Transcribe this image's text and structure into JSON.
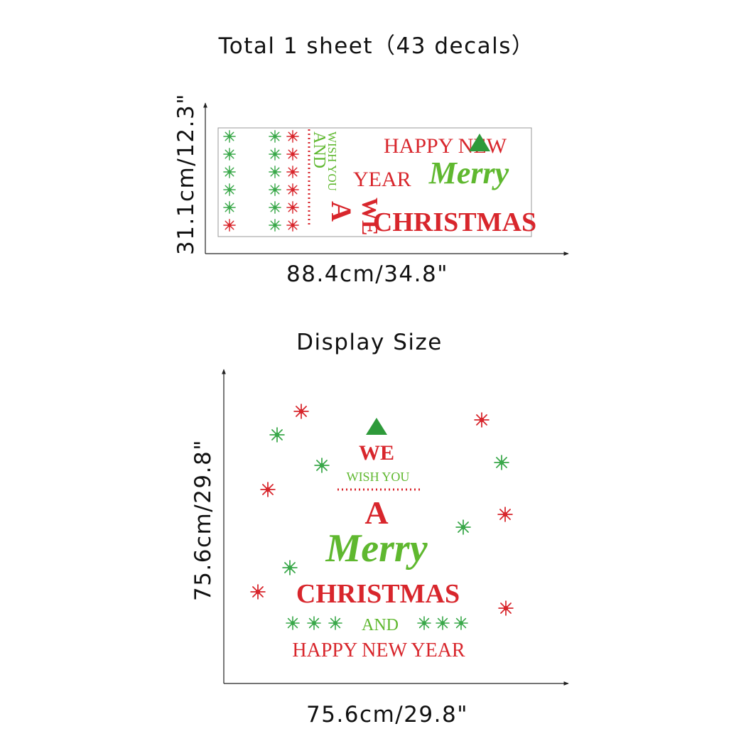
{
  "header": {
    "title": "Total 1 sheet（43 decals）"
  },
  "sheet": {
    "height_label": "31.1cm/12.3\"",
    "width_label": "88.4cm/34.8\"",
    "decal_texts": [
      "HAPPY NEW",
      "YEAR",
      "Merry",
      "CHRISTMAS",
      "WISH YOU",
      "AND",
      "A",
      "WE"
    ]
  },
  "display": {
    "title": "Display Size",
    "height_label": "75.6cm/29.8\"",
    "width_label": "75.6cm/29.8\"",
    "decal_texts": [
      "WE",
      "WISH YOU",
      "A",
      "Merry",
      "CHRISTMAS",
      "AND",
      "HAPPY NEW YEAR"
    ]
  }
}
